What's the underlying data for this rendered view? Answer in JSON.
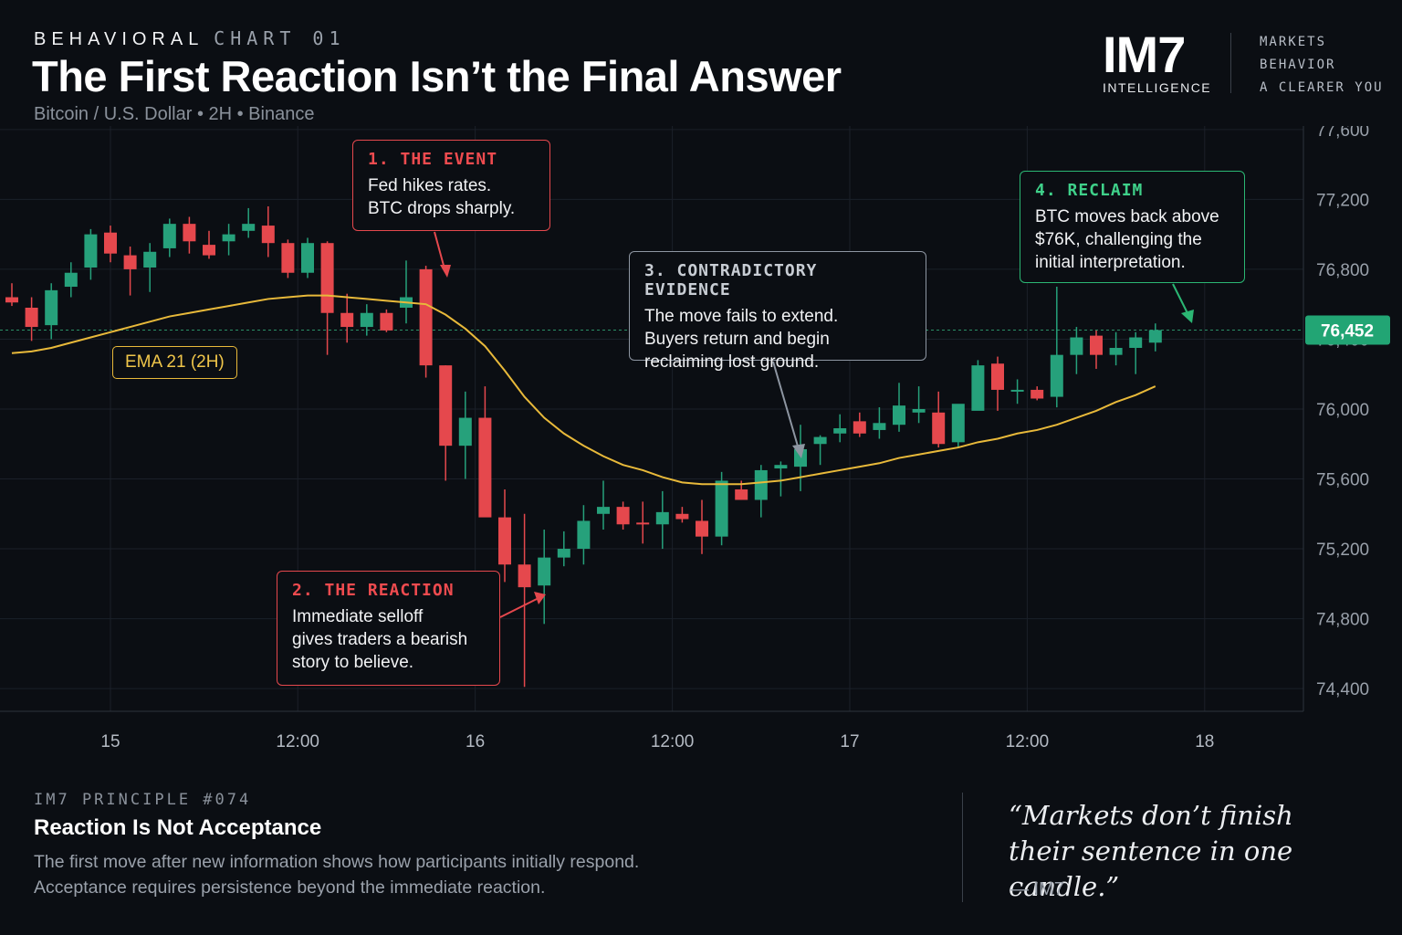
{
  "header": {
    "kicker_bold": "BEHAVIORAL",
    "kicker_light": "CHART 01",
    "title": "The First Reaction Isn’t the Final Answer",
    "subtitle": "Bitcoin / U.S. Dollar • 2H • Binance"
  },
  "brand": {
    "logo": "IM7",
    "logo_sub": "INTELLIGENCE",
    "tagline": [
      "MARKETS",
      "BEHAVIOR",
      "A CLEARER YOU"
    ]
  },
  "callouts": {
    "event": {
      "head": "1. THE EVENT",
      "lines": [
        "Fed hikes rates.",
        "BTC drops sharply."
      ]
    },
    "reaction": {
      "head": "2. THE REACTION",
      "lines": [
        "Immediate selloff",
        "gives traders a bearish",
        "story to believe."
      ]
    },
    "evidence": {
      "head": "3. CONTRADICTORY EVIDENCE",
      "lines": [
        "The move fails to extend.",
        "Buyers return and begin",
        "reclaiming lost ground."
      ]
    },
    "reclaim": {
      "head": "4. RECLAIM",
      "lines": [
        "BTC moves back above",
        "$76K, challenging the",
        "initial interpretation."
      ]
    }
  },
  "ema_label": "EMA 21 (2H)",
  "footer": {
    "principle_kicker": "IM7 PRINCIPLE #074",
    "principle_title": "Reaction Is Not Acceptance",
    "principle_lines": [
      "The first move after new information shows how participants initially respond.",
      "Acceptance requires persistence beyond the immediate reaction."
    ],
    "quote_lines": [
      "“Markets don’t finish",
      "their sentence in one candle.”"
    ],
    "quote_author": "— IM7"
  },
  "colors": {
    "background": "#0b0e13",
    "bull": "#26a17b",
    "bear": "#e5484d",
    "ema": "#e8b93a",
    "price_tag": "#22a574",
    "grid": "#1b2029",
    "neutral_callout": "#8e96a2"
  },
  "chart_data": {
    "type": "candlestick",
    "symbol": "Bitcoin / U.S. Dollar",
    "interval": "2H",
    "exchange": "Binance",
    "y_ticks": [
      77600,
      77200,
      76800,
      76400,
      76000,
      75600,
      75200,
      74800,
      74400
    ],
    "y_tick_labels": [
      "77,600",
      "77,200",
      "76,800",
      "76,400",
      "76,000",
      "75,600",
      "75,200",
      "74,800",
      "74,400"
    ],
    "ylim": [
      74270,
      77620
    ],
    "x_ticks": [
      {
        "label": "15",
        "index": 5
      },
      {
        "label": "12:00",
        "index": 14.5
      },
      {
        "label": "16",
        "index": 23.5
      },
      {
        "label": "12:00",
        "index": 33.5
      },
      {
        "label": "17",
        "index": 42.5
      },
      {
        "label": "12:00",
        "index": 51.5
      },
      {
        "label": "18",
        "index": 60.5
      }
    ],
    "last_price": 76452,
    "last_price_label": "76,452",
    "candles": [
      {
        "o": 76640,
        "h": 76720,
        "l": 76590,
        "c": 76610
      },
      {
        "o": 76580,
        "h": 76640,
        "l": 76390,
        "c": 76470
      },
      {
        "o": 76480,
        "h": 76720,
        "l": 76400,
        "c": 76680
      },
      {
        "o": 76700,
        "h": 76840,
        "l": 76640,
        "c": 76780
      },
      {
        "o": 76810,
        "h": 77030,
        "l": 76740,
        "c": 77000
      },
      {
        "o": 77010,
        "h": 77050,
        "l": 76840,
        "c": 76890
      },
      {
        "o": 76880,
        "h": 76930,
        "l": 76650,
        "c": 76800
      },
      {
        "o": 76810,
        "h": 76950,
        "l": 76670,
        "c": 76900
      },
      {
        "o": 76920,
        "h": 77090,
        "l": 76870,
        "c": 77060
      },
      {
        "o": 77060,
        "h": 77100,
        "l": 76890,
        "c": 76960
      },
      {
        "o": 76940,
        "h": 77020,
        "l": 76860,
        "c": 76880
      },
      {
        "o": 76960,
        "h": 77060,
        "l": 76880,
        "c": 77000
      },
      {
        "o": 77020,
        "h": 77150,
        "l": 76980,
        "c": 77060
      },
      {
        "o": 77050,
        "h": 77160,
        "l": 76870,
        "c": 76950
      },
      {
        "o": 76950,
        "h": 76970,
        "l": 76750,
        "c": 76780
      },
      {
        "o": 76780,
        "h": 76980,
        "l": 76750,
        "c": 76950
      },
      {
        "o": 76950,
        "h": 76960,
        "l": 76310,
        "c": 76550
      },
      {
        "o": 76550,
        "h": 76660,
        "l": 76380,
        "c": 76470
      },
      {
        "o": 76470,
        "h": 76600,
        "l": 76420,
        "c": 76550
      },
      {
        "o": 76550,
        "h": 76570,
        "l": 76440,
        "c": 76450
      },
      {
        "o": 76580,
        "h": 76850,
        "l": 76490,
        "c": 76640
      },
      {
        "o": 76800,
        "h": 76820,
        "l": 76180,
        "c": 76250
      },
      {
        "o": 76250,
        "h": 76250,
        "l": 75590,
        "c": 75790
      },
      {
        "o": 75790,
        "h": 76100,
        "l": 75600,
        "c": 75950
      },
      {
        "o": 75950,
        "h": 76130,
        "l": 75390,
        "c": 75380
      },
      {
        "o": 75380,
        "h": 75540,
        "l": 75010,
        "c": 75110
      },
      {
        "o": 75110,
        "h": 75400,
        "l": 74410,
        "c": 74980
      },
      {
        "o": 74990,
        "h": 75310,
        "l": 74770,
        "c": 75150
      },
      {
        "o": 75150,
        "h": 75300,
        "l": 75100,
        "c": 75200
      },
      {
        "o": 75200,
        "h": 75450,
        "l": 75110,
        "c": 75360
      },
      {
        "o": 75400,
        "h": 75590,
        "l": 75310,
        "c": 75440
      },
      {
        "o": 75440,
        "h": 75470,
        "l": 75310,
        "c": 75340
      },
      {
        "o": 75350,
        "h": 75470,
        "l": 75230,
        "c": 75340
      },
      {
        "o": 75340,
        "h": 75530,
        "l": 75200,
        "c": 75410
      },
      {
        "o": 75400,
        "h": 75440,
        "l": 75350,
        "c": 75370
      },
      {
        "o": 75360,
        "h": 75480,
        "l": 75170,
        "c": 75270
      },
      {
        "o": 75270,
        "h": 75640,
        "l": 75220,
        "c": 75590
      },
      {
        "o": 75540,
        "h": 75590,
        "l": 75480,
        "c": 75480
      },
      {
        "o": 75480,
        "h": 75680,
        "l": 75380,
        "c": 75650
      },
      {
        "o": 75660,
        "h": 75700,
        "l": 75500,
        "c": 75680
      },
      {
        "o": 75670,
        "h": 75910,
        "l": 75530,
        "c": 75770
      },
      {
        "o": 75800,
        "h": 75850,
        "l": 75680,
        "c": 75840
      },
      {
        "o": 75860,
        "h": 75970,
        "l": 75810,
        "c": 75890
      },
      {
        "o": 75930,
        "h": 75980,
        "l": 75840,
        "c": 75860
      },
      {
        "o": 75880,
        "h": 76010,
        "l": 75830,
        "c": 75920
      },
      {
        "o": 75910,
        "h": 76150,
        "l": 75870,
        "c": 76020
      },
      {
        "o": 75980,
        "h": 76130,
        "l": 75920,
        "c": 76000
      },
      {
        "o": 75980,
        "h": 76100,
        "l": 75780,
        "c": 75800
      },
      {
        "o": 75810,
        "h": 76010,
        "l": 75780,
        "c": 76030
      },
      {
        "o": 75990,
        "h": 76280,
        "l": 76000,
        "c": 76250
      },
      {
        "o": 76260,
        "h": 76300,
        "l": 75990,
        "c": 76110
      },
      {
        "o": 76110,
        "h": 76170,
        "l": 76030,
        "c": 76110
      },
      {
        "o": 76110,
        "h": 76130,
        "l": 76050,
        "c": 76060
      },
      {
        "o": 76070,
        "h": 76700,
        "l": 76010,
        "c": 76310
      },
      {
        "o": 76310,
        "h": 76470,
        "l": 76200,
        "c": 76410
      },
      {
        "o": 76420,
        "h": 76450,
        "l": 76230,
        "c": 76310
      },
      {
        "o": 76310,
        "h": 76440,
        "l": 76250,
        "c": 76350
      },
      {
        "o": 76350,
        "h": 76440,
        "l": 76200,
        "c": 76410
      },
      {
        "o": 76380,
        "h": 76490,
        "l": 76330,
        "c": 76452
      }
    ],
    "ema21": [
      76320,
      76330,
      76350,
      76380,
      76410,
      76440,
      76470,
      76500,
      76530,
      76550,
      76570,
      76590,
      76610,
      76630,
      76640,
      76650,
      76650,
      76640,
      76630,
      76620,
      76610,
      76600,
      76540,
      76460,
      76360,
      76220,
      76070,
      75950,
      75860,
      75790,
      75730,
      75680,
      75650,
      75610,
      75580,
      75570,
      75570,
      75570,
      75580,
      75590,
      75610,
      75630,
      75650,
      75670,
      75690,
      75720,
      75740,
      75760,
      75780,
      75810,
      75830,
      75860,
      75880,
      75910,
      75950,
      75990,
      76040,
      76080,
      76130
    ]
  }
}
